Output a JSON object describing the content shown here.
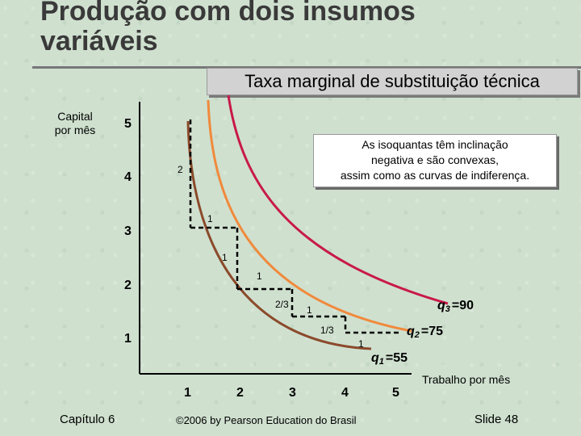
{
  "slide": {
    "title_line1": "Produção com dois insumos",
    "title_line2": "variáveis",
    "subtitle": "Taxa marginal de substituição técnica",
    "footer_left": "Capítulo 6",
    "footer_center": "©2006 by Pearson Education do Brasil",
    "footer_right": "Slide 48"
  },
  "callout": {
    "line1": "As isoquantas têm inclinação",
    "line2": "negativa e são convexas,",
    "line3": "assim como as curvas de indiferença."
  },
  "axes": {
    "y_label_line1": "Capital",
    "y_label_line2": "por mês",
    "x_label": "Trabalho por mês",
    "x_ticks": [
      "1",
      "2",
      "3",
      "4",
      "5"
    ],
    "y_ticks": [
      "5",
      "4",
      "3",
      "2",
      "1"
    ]
  },
  "isoquants": [
    {
      "id": "q1",
      "letter": "q",
      "sub": "1",
      "value": "=55",
      "color": "#8b4a2b"
    },
    {
      "id": "q2",
      "letter": "q",
      "sub": "2",
      "value": "=75",
      "color": "#f08a3c"
    },
    {
      "id": "q3",
      "letter": "q",
      "sub": "3",
      "value": "=90",
      "color": "#c8194a"
    }
  ],
  "steps": {
    "dk1": "2",
    "dl1": "1",
    "dk2": "1",
    "dl2": "1",
    "dk3": "2/3",
    "dl3": "1",
    "dk4": "1/3",
    "dl4": "1"
  }
}
